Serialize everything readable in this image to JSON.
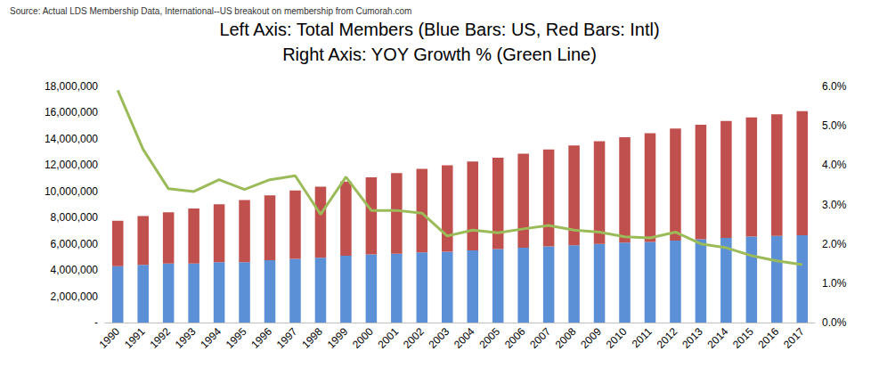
{
  "chart_data": {
    "type": "bar",
    "title": "Left Axis: Total Members (Blue Bars: US, Red Bars: Intl)\nRight Axis: YOY Growth % (Green Line)",
    "annotations": [
      "Source: Actual LDS Membership Data, International--US breakout on membership from Cumorah.com"
    ],
    "categories": [
      "1990",
      "1991",
      "1992",
      "1993",
      "1994",
      "1995",
      "1996",
      "1997",
      "1998",
      "1999",
      "2000",
      "2001",
      "2002",
      "2003",
      "2004",
      "2005",
      "2006",
      "2007",
      "2008",
      "2009",
      "2010",
      "2011",
      "2012",
      "2013",
      "2014",
      "2015",
      "2016",
      "2017"
    ],
    "stacked": true,
    "grid": false,
    "series": [
      {
        "name": "US",
        "type": "bar",
        "color": "#5b8fd6",
        "values": [
          4300000,
          4400000,
          4500000,
          4500000,
          4600000,
          4600000,
          4750000,
          4850000,
          4950000,
          5100000,
          5200000,
          5250000,
          5350000,
          5400000,
          5500000,
          5600000,
          5700000,
          5800000,
          5900000,
          6000000,
          6100000,
          6150000,
          6250000,
          6350000,
          6450000,
          6550000,
          6600000,
          6650000
        ]
      },
      {
        "name": "Intl",
        "type": "bar",
        "color": "#c0504d",
        "values": [
          3461000,
          3720000,
          3906000,
          4189000,
          4425000,
          4740000,
          4944000,
          5221000,
          5404000,
          5653000,
          5868000,
          6144000,
          6371000,
          6585000,
          6775000,
          6960000,
          7168000,
          7393000,
          7608000,
          7824000,
          8031000,
          8291000,
          8533000,
          8732000,
          8922000,
          9084000,
          9282000,
          9468000
        ]
      },
      {
        "name": "YOY Growth %",
        "type": "line",
        "axis": "y2",
        "color": "#9bbb59",
        "values": [
          5.9,
          4.4,
          3.4,
          3.33,
          3.63,
          3.38,
          3.63,
          3.73,
          2.75,
          3.7,
          2.85,
          2.85,
          2.78,
          2.2,
          2.35,
          2.28,
          2.38,
          2.47,
          2.35,
          2.3,
          2.18,
          2.15,
          2.3,
          2.0,
          1.9,
          1.7,
          1.57,
          1.47
        ]
      }
    ],
    "ylim": [
      0,
      18000000
    ],
    "yticks": [
      {
        "value": 0,
        "label": "-"
      },
      {
        "value": 2000000,
        "label": "2,000,000"
      },
      {
        "value": 4000000,
        "label": "4,000,000"
      },
      {
        "value": 6000000,
        "label": "6,000,000"
      },
      {
        "value": 8000000,
        "label": "8,000,000"
      },
      {
        "value": 10000000,
        "label": "10,000,000"
      },
      {
        "value": 12000000,
        "label": "12,000,000"
      },
      {
        "value": 14000000,
        "label": "14,000,000"
      },
      {
        "value": 16000000,
        "label": "16,000,000"
      },
      {
        "value": 18000000,
        "label": "18,000,000"
      }
    ],
    "y2lim": [
      0,
      6
    ],
    "y2ticks": [
      {
        "value": 0,
        "label": "0.0%"
      },
      {
        "value": 1,
        "label": "1.0%"
      },
      {
        "value": 2,
        "label": "2.0%"
      },
      {
        "value": 3,
        "label": "3.0%"
      },
      {
        "value": 4,
        "label": "4.0%"
      },
      {
        "value": 5,
        "label": "5.0%"
      },
      {
        "value": 6,
        "label": "6.0%"
      }
    ]
  }
}
